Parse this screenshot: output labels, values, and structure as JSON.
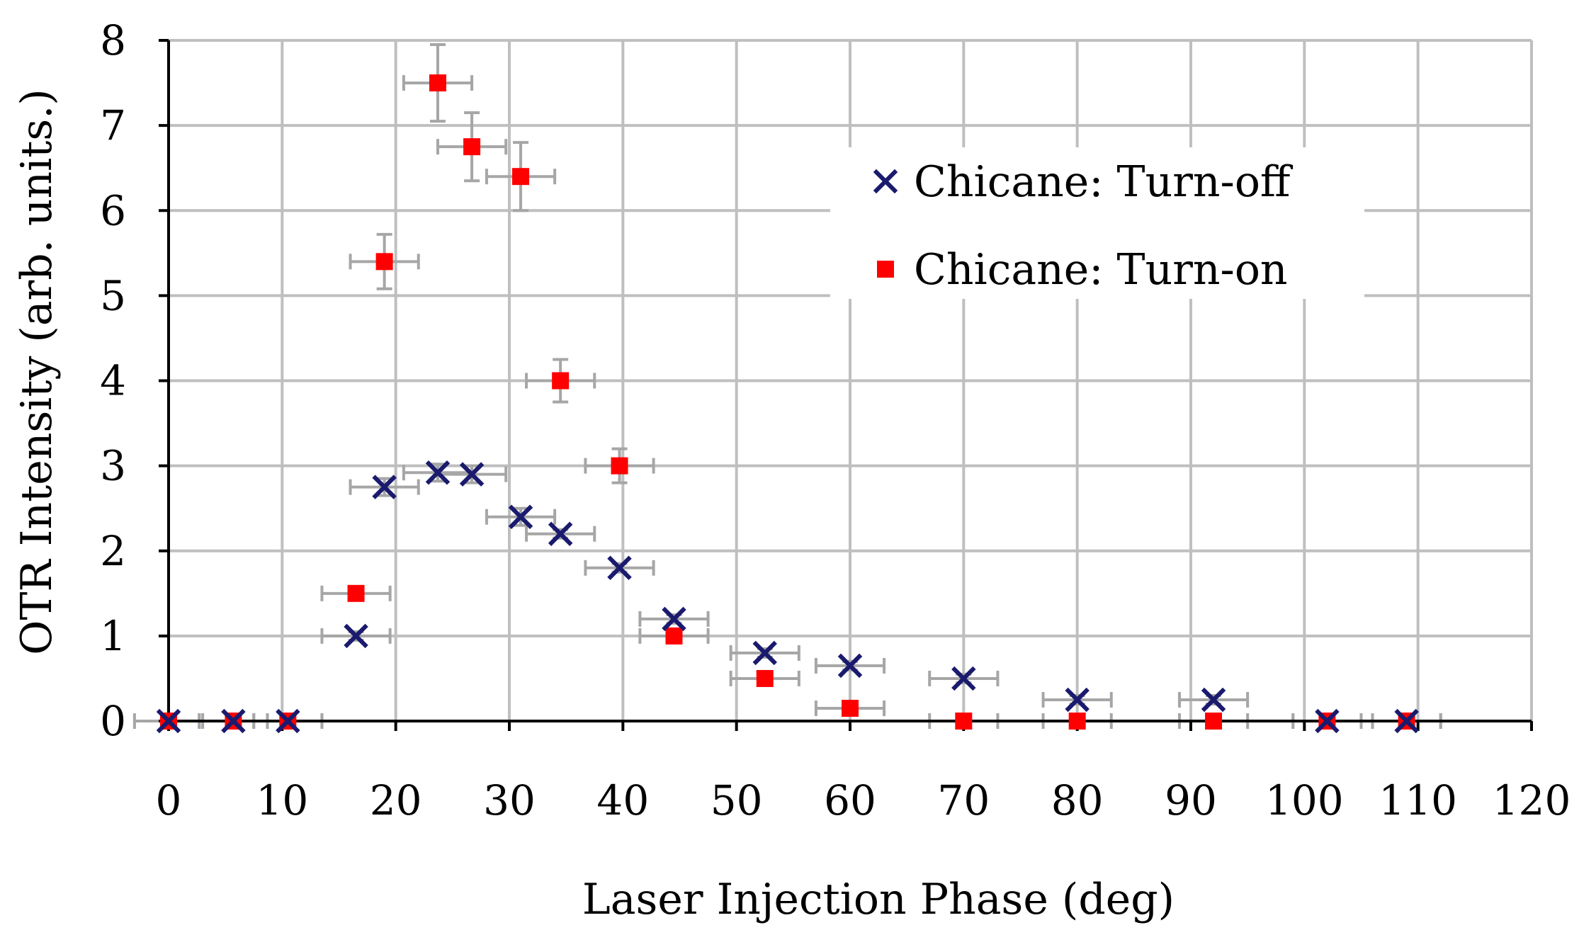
{
  "colors": {
    "turn_off": "#1a1a6e",
    "turn_on": "#ff0000",
    "grid": "#bfbfbf",
    "error_bar": "#a6a6a6",
    "axis": "#000000"
  },
  "chart_data": {
    "type": "scatter",
    "title": "",
    "xlabel": "Laser Injection Phase (deg)",
    "ylabel": "OTR Intensity (arb. units.)",
    "xlim": [
      0,
      120
    ],
    "ylim": [
      0,
      8
    ],
    "grid": true,
    "x_ticks": [
      0,
      10,
      20,
      30,
      40,
      50,
      60,
      70,
      80,
      90,
      100,
      110,
      120
    ],
    "y_ticks": [
      0,
      1,
      2,
      3,
      4,
      5,
      6,
      7,
      8
    ],
    "legend_position": "top-right",
    "series": [
      {
        "name": "Chicane: Turn-off",
        "marker": "x",
        "x": [
          0,
          5.7,
          10.5,
          16.5,
          19,
          23.7,
          26.7,
          31,
          34.5,
          39.7,
          44.5,
          52.5,
          60,
          70,
          80,
          92,
          102,
          109
        ],
        "y": [
          0,
          0,
          0,
          1.0,
          2.75,
          2.92,
          2.9,
          2.4,
          2.2,
          1.8,
          1.2,
          0.8,
          0.65,
          0.5,
          0.25,
          0.25,
          0,
          0
        ],
        "xerr": [
          0,
          3,
          3,
          3,
          3,
          3,
          3,
          3,
          3,
          3,
          3,
          3,
          3,
          3,
          3,
          3,
          3,
          3
        ],
        "yerr": [
          0,
          0,
          0,
          0.05,
          0.1,
          0.1,
          0.1,
          0.1,
          0.05,
          0.05,
          0.05,
          0.05,
          0.05,
          0.05,
          0.05,
          0.05,
          0,
          0
        ]
      },
      {
        "name": "Chicane: Turn-on",
        "marker": "square",
        "x": [
          0,
          5.7,
          10.5,
          16.5,
          19,
          23.7,
          26.7,
          31,
          34.5,
          39.7,
          44.5,
          52.5,
          60,
          70,
          80,
          92,
          102,
          109
        ],
        "y": [
          0,
          0,
          0,
          1.5,
          5.4,
          7.5,
          6.75,
          6.4,
          4.0,
          3.0,
          1.0,
          0.5,
          0.15,
          0,
          0,
          0,
          0,
          0
        ],
        "xerr": [
          3,
          3,
          3,
          3,
          3,
          3,
          3,
          3,
          3,
          3,
          3,
          3,
          3,
          3,
          3,
          3,
          3,
          3
        ],
        "yerr": [
          0,
          0,
          0,
          0.05,
          0.32,
          0.45,
          0.4,
          0.4,
          0.25,
          0.2,
          0.05,
          0.05,
          0.05,
          0,
          0,
          0,
          0,
          0
        ]
      }
    ]
  }
}
